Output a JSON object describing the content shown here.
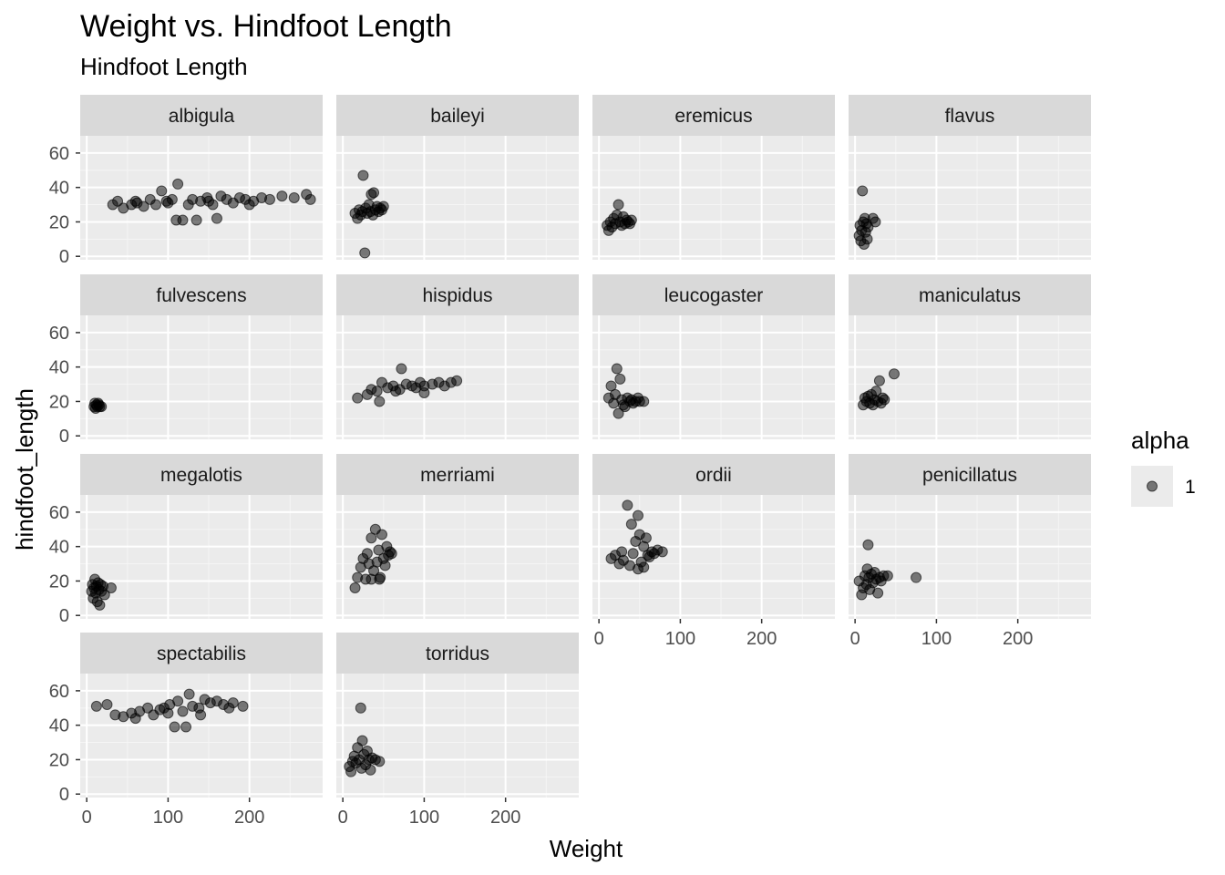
{
  "chart_data": {
    "type": "scatter",
    "title": "Weight vs. Hindfoot Length",
    "subtitle": "Hindfoot Length",
    "xlabel": "Weight",
    "ylabel": "hindfoot_length",
    "xlim": [
      -8,
      290
    ],
    "ylim": [
      -2,
      70
    ],
    "x_ticks": [
      0,
      100,
      200
    ],
    "y_ticks": [
      0,
      20,
      40,
      60
    ],
    "point_color": "#000000",
    "point_opacity": 0.5,
    "panel_bg": "#ebebeb",
    "strip_bg": "#d9d9d9",
    "legend": {
      "title": "alpha",
      "entries": [
        "1"
      ],
      "position": "right"
    },
    "facets": [
      {
        "name": "albigula",
        "points": [
          [
            32,
            30
          ],
          [
            38,
            32
          ],
          [
            45,
            28
          ],
          [
            55,
            30
          ],
          [
            62,
            31
          ],
          [
            70,
            29
          ],
          [
            78,
            33
          ],
          [
            85,
            30
          ],
          [
            92,
            38
          ],
          [
            98,
            32
          ],
          [
            105,
            33
          ],
          [
            110,
            21
          ],
          [
            112,
            42
          ],
          [
            118,
            21
          ],
          [
            125,
            30
          ],
          [
            130,
            33
          ],
          [
            135,
            21
          ],
          [
            140,
            32
          ],
          [
            148,
            34
          ],
          [
            155,
            30
          ],
          [
            160,
            22
          ],
          [
            165,
            35
          ],
          [
            172,
            33
          ],
          [
            180,
            31
          ],
          [
            188,
            34
          ],
          [
            195,
            33
          ],
          [
            205,
            32
          ],
          [
            215,
            34
          ],
          [
            225,
            33
          ],
          [
            240,
            35
          ],
          [
            255,
            34
          ],
          [
            270,
            36
          ],
          [
            275,
            33
          ],
          [
            60,
            32
          ],
          [
            100,
            31
          ],
          [
            150,
            32
          ],
          [
            200,
            30
          ]
        ]
      },
      {
        "name": "baileyi",
        "points": [
          [
            15,
            25
          ],
          [
            18,
            22
          ],
          [
            20,
            27
          ],
          [
            22,
            24
          ],
          [
            24,
            26
          ],
          [
            25,
            47
          ],
          [
            27,
            2
          ],
          [
            28,
            28
          ],
          [
            30,
            25
          ],
          [
            32,
            30
          ],
          [
            34,
            26
          ],
          [
            35,
            36
          ],
          [
            37,
            24
          ],
          [
            38,
            37
          ],
          [
            40,
            27
          ],
          [
            42,
            29
          ],
          [
            44,
            26
          ],
          [
            46,
            28
          ],
          [
            48,
            27
          ],
          [
            50,
            29
          ]
        ]
      },
      {
        "name": "eremicus",
        "points": [
          [
            10,
            18
          ],
          [
            12,
            15
          ],
          [
            14,
            20
          ],
          [
            16,
            17
          ],
          [
            18,
            22
          ],
          [
            20,
            19
          ],
          [
            22,
            24
          ],
          [
            24,
            30
          ],
          [
            26,
            20
          ],
          [
            28,
            18
          ],
          [
            30,
            23
          ],
          [
            32,
            19
          ],
          [
            34,
            21
          ],
          [
            36,
            20
          ],
          [
            38,
            19
          ],
          [
            40,
            21
          ]
        ]
      },
      {
        "name": "flavus",
        "points": [
          [
            5,
            12
          ],
          [
            6,
            18
          ],
          [
            7,
            9
          ],
          [
            8,
            15
          ],
          [
            9,
            38
          ],
          [
            10,
            20
          ],
          [
            11,
            7
          ],
          [
            12,
            22
          ],
          [
            13,
            14
          ],
          [
            14,
            19
          ],
          [
            15,
            10
          ],
          [
            16,
            17
          ],
          [
            22,
            22
          ],
          [
            25,
            20
          ]
        ]
      },
      {
        "name": "fulvescens",
        "points": [
          [
            9,
            17
          ],
          [
            10,
            19
          ],
          [
            11,
            16
          ],
          [
            12,
            18
          ],
          [
            13,
            17
          ],
          [
            14,
            19
          ],
          [
            15,
            18
          ],
          [
            16,
            17
          ],
          [
            18,
            17
          ]
        ]
      },
      {
        "name": "hispidus",
        "points": [
          [
            18,
            22
          ],
          [
            30,
            24
          ],
          [
            35,
            27
          ],
          [
            42,
            26
          ],
          [
            48,
            31
          ],
          [
            55,
            28
          ],
          [
            62,
            29
          ],
          [
            70,
            27
          ],
          [
            72,
            39
          ],
          [
            78,
            30
          ],
          [
            85,
            29
          ],
          [
            90,
            28
          ],
          [
            95,
            31
          ],
          [
            100,
            29
          ],
          [
            110,
            30
          ],
          [
            118,
            31
          ],
          [
            125,
            29
          ],
          [
            133,
            31
          ],
          [
            140,
            32
          ],
          [
            45,
            20
          ],
          [
            65,
            26
          ],
          [
            100,
            25
          ]
        ]
      },
      {
        "name": "leucogaster",
        "points": [
          [
            12,
            22
          ],
          [
            15,
            29
          ],
          [
            18,
            19
          ],
          [
            20,
            24
          ],
          [
            22,
            39
          ],
          [
            24,
            13
          ],
          [
            26,
            33
          ],
          [
            28,
            21
          ],
          [
            30,
            18
          ],
          [
            32,
            17
          ],
          [
            35,
            22
          ],
          [
            38,
            20
          ],
          [
            40,
            21
          ],
          [
            42,
            19
          ],
          [
            45,
            20
          ],
          [
            48,
            22
          ],
          [
            50,
            20
          ],
          [
            55,
            20
          ]
        ]
      },
      {
        "name": "maniculatus",
        "points": [
          [
            10,
            18
          ],
          [
            12,
            22
          ],
          [
            14,
            20
          ],
          [
            16,
            23
          ],
          [
            18,
            19
          ],
          [
            20,
            24
          ],
          [
            22,
            18
          ],
          [
            24,
            21
          ],
          [
            26,
            26
          ],
          [
            28,
            20
          ],
          [
            30,
            32
          ],
          [
            32,
            19
          ],
          [
            34,
            22
          ],
          [
            36,
            21
          ],
          [
            48,
            36
          ]
        ]
      },
      {
        "name": "megalotis",
        "points": [
          [
            6,
            14
          ],
          [
            7,
            18
          ],
          [
            8,
            10
          ],
          [
            9,
            16
          ],
          [
            10,
            21
          ],
          [
            11,
            13
          ],
          [
            12,
            17
          ],
          [
            13,
            8
          ],
          [
            14,
            19
          ],
          [
            15,
            15
          ],
          [
            16,
            6
          ],
          [
            17,
            18
          ],
          [
            18,
            14
          ],
          [
            20,
            17
          ],
          [
            22,
            12
          ],
          [
            30,
            16
          ]
        ]
      },
      {
        "name": "merriami",
        "points": [
          [
            15,
            16
          ],
          [
            18,
            22
          ],
          [
            22,
            28
          ],
          [
            25,
            33
          ],
          [
            28,
            21
          ],
          [
            30,
            36
          ],
          [
            32,
            30
          ],
          [
            35,
            45
          ],
          [
            38,
            26
          ],
          [
            40,
            50
          ],
          [
            42,
            31
          ],
          [
            44,
            38
          ],
          [
            46,
            22
          ],
          [
            48,
            47
          ],
          [
            50,
            33
          ],
          [
            52,
            29
          ],
          [
            54,
            40
          ],
          [
            56,
            35
          ],
          [
            58,
            37
          ],
          [
            60,
            36
          ],
          [
            35,
            21
          ],
          [
            45,
            21
          ]
        ]
      },
      {
        "name": "ordii",
        "points": [
          [
            15,
            33
          ],
          [
            20,
            35
          ],
          [
            25,
            30
          ],
          [
            28,
            37
          ],
          [
            30,
            32
          ],
          [
            35,
            64
          ],
          [
            38,
            29
          ],
          [
            40,
            53
          ],
          [
            42,
            36
          ],
          [
            45,
            43
          ],
          [
            48,
            58
          ],
          [
            50,
            47
          ],
          [
            52,
            31
          ],
          [
            55,
            40
          ],
          [
            58,
            45
          ],
          [
            60,
            35
          ],
          [
            62,
            34
          ],
          [
            65,
            37
          ],
          [
            68,
            36
          ],
          [
            72,
            38
          ],
          [
            78,
            37
          ],
          [
            48,
            27
          ],
          [
            55,
            28
          ]
        ]
      },
      {
        "name": "penicillatus",
        "points": [
          [
            5,
            20
          ],
          [
            8,
            12
          ],
          [
            10,
            16
          ],
          [
            12,
            23
          ],
          [
            14,
            18
          ],
          [
            15,
            27
          ],
          [
            16,
            41
          ],
          [
            17,
            22
          ],
          [
            18,
            15
          ],
          [
            20,
            24
          ],
          [
            22,
            19
          ],
          [
            24,
            25
          ],
          [
            26,
            21
          ],
          [
            28,
            13
          ],
          [
            30,
            22
          ],
          [
            32,
            20
          ],
          [
            35,
            23
          ],
          [
            40,
            23
          ],
          [
            75,
            22
          ]
        ]
      },
      {
        "name": "spectabilis",
        "points": [
          [
            12,
            51
          ],
          [
            25,
            52
          ],
          [
            35,
            46
          ],
          [
            45,
            45
          ],
          [
            55,
            47
          ],
          [
            65,
            48
          ],
          [
            75,
            50
          ],
          [
            82,
            46
          ],
          [
            90,
            49
          ],
          [
            95,
            50
          ],
          [
            102,
            52
          ],
          [
            108,
            39
          ],
          [
            112,
            54
          ],
          [
            118,
            48
          ],
          [
            122,
            39
          ],
          [
            126,
            58
          ],
          [
            130,
            51
          ],
          [
            138,
            50
          ],
          [
            145,
            55
          ],
          [
            152,
            53
          ],
          [
            160,
            54
          ],
          [
            168,
            52
          ],
          [
            175,
            50
          ],
          [
            180,
            53
          ],
          [
            192,
            51
          ],
          [
            60,
            44
          ],
          [
            100,
            47
          ],
          [
            140,
            46
          ]
        ]
      },
      {
        "name": "torridus",
        "points": [
          [
            8,
            16
          ],
          [
            10,
            13
          ],
          [
            12,
            19
          ],
          [
            14,
            22
          ],
          [
            16,
            18
          ],
          [
            18,
            27
          ],
          [
            20,
            20
          ],
          [
            22,
            50
          ],
          [
            23,
            15
          ],
          [
            24,
            31
          ],
          [
            26,
            23
          ],
          [
            28,
            17
          ],
          [
            30,
            25
          ],
          [
            32,
            20
          ],
          [
            34,
            14
          ],
          [
            36,
            21
          ],
          [
            40,
            20
          ],
          [
            45,
            19
          ]
        ]
      }
    ]
  }
}
